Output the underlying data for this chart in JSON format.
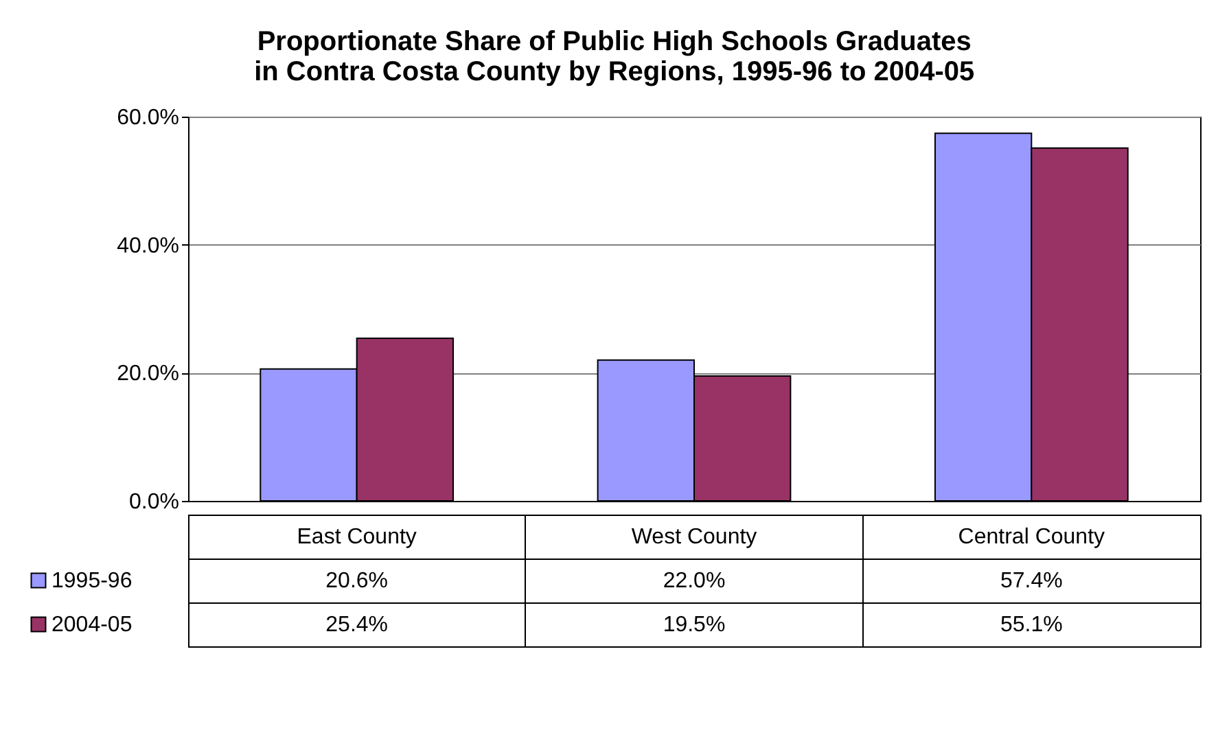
{
  "chart_data": {
    "type": "bar",
    "title": [
      "Proportionate Share of Public High Schools Graduates",
      "in Contra Costa County by Regions, 1995-96 to 2004-05"
    ],
    "categories": [
      "East County",
      "West County",
      "Central County"
    ],
    "series": [
      {
        "name": "1995-96",
        "color": "#9999ff",
        "values": [
          20.6,
          22.0,
          57.4
        ],
        "value_labels": [
          "20.6%",
          "22.0%",
          "57.4%"
        ]
      },
      {
        "name": "2004-05",
        "color": "#993366",
        "values": [
          25.4,
          19.5,
          55.1
        ],
        "value_labels": [
          "25.4%",
          "19.5%",
          "55.1%"
        ]
      }
    ],
    "ylim": [
      0,
      60
    ],
    "yticks": [
      {
        "value": 0,
        "label": "0.0%"
      },
      {
        "value": 20,
        "label": "20.0%"
      },
      {
        "value": 40,
        "label": "40.0%"
      },
      {
        "value": 60,
        "label": "60.0%"
      }
    ],
    "grid": "y",
    "legend": "bottom left"
  }
}
